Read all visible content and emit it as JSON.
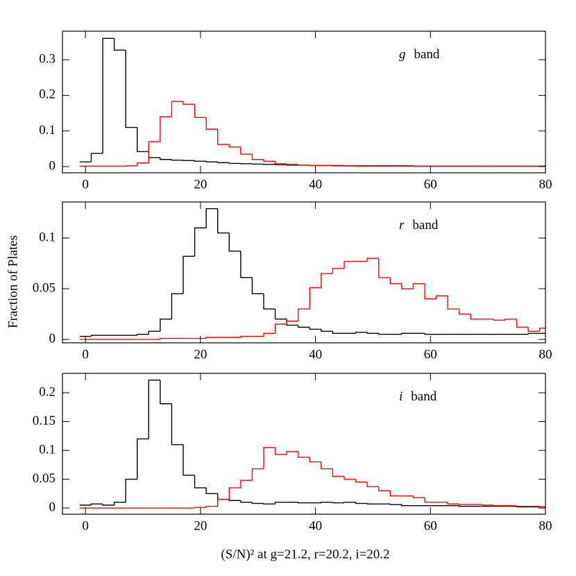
{
  "chart_data": [
    {
      "type": "histogram",
      "annotation": {
        "italic": "g",
        "text": "band"
      },
      "bins": [
        -1,
        1,
        3,
        5,
        7,
        9,
        11,
        13,
        15,
        17,
        19,
        21,
        23,
        25,
        27,
        29,
        31,
        33,
        35,
        37,
        39,
        41,
        43,
        45,
        47,
        49,
        51,
        53,
        55,
        57,
        59,
        61,
        63,
        65,
        67,
        69,
        71,
        73,
        75,
        77,
        79,
        81
      ],
      "series": [
        {
          "color": "#000000",
          "values": [
            0.013,
            0.037,
            0.36,
            0.327,
            0.11,
            0.042,
            0.025,
            0.02,
            0.018,
            0.017,
            0.015,
            0.013,
            0.011,
            0.009,
            0.008,
            0.007,
            0.006,
            0.005,
            0.004,
            0.004,
            0.003,
            0.003,
            0.003,
            0.002,
            0.002,
            0.002,
            0.002,
            0.002,
            0.002,
            0.001,
            0.001,
            0.001,
            0.001,
            0.001,
            0.001,
            0.001,
            0.001,
            0.001,
            0.001,
            0.001,
            0.001
          ]
        },
        {
          "color": "#ff0000",
          "values": [
            0.001,
            0.001,
            0.001,
            0.001,
            0.002,
            0.01,
            0.07,
            0.14,
            0.183,
            0.175,
            0.138,
            0.105,
            0.062,
            0.055,
            0.035,
            0.02,
            0.015,
            0.008,
            0.006,
            0.004,
            0.003,
            0.003,
            0.002,
            0.002,
            0.001,
            0.001,
            0.001,
            0.001,
            0.001,
            0.001,
            0.001,
            0.001,
            0.001,
            0.001,
            0.001,
            0.001,
            0.001,
            0.001,
            0.001,
            0.001,
            0.001
          ]
        }
      ],
      "xlim": [
        -4,
        80
      ],
      "xticks": [
        0,
        20,
        40,
        60,
        80
      ],
      "ylim": [
        -0.0175,
        0.38
      ],
      "yticks": [
        0,
        0.1,
        0.2,
        0.3
      ]
    },
    {
      "type": "histogram",
      "annotation": {
        "italic": "r",
        "text": "band"
      },
      "ylabel": "Fraction of Plates",
      "bins": [
        -1,
        1,
        3,
        5,
        7,
        9,
        11,
        13,
        15,
        17,
        19,
        21,
        23,
        25,
        27,
        29,
        31,
        33,
        35,
        37,
        39,
        41,
        43,
        45,
        47,
        49,
        51,
        53,
        55,
        57,
        59,
        61,
        63,
        65,
        67,
        69,
        71,
        73,
        75,
        77,
        79,
        81
      ],
      "series": [
        {
          "color": "#000000",
          "values": [
            0.003,
            0.004,
            0.004,
            0.004,
            0.004,
            0.005,
            0.008,
            0.02,
            0.045,
            0.082,
            0.11,
            0.129,
            0.105,
            0.087,
            0.061,
            0.045,
            0.03,
            0.02,
            0.014,
            0.012,
            0.01,
            0.008,
            0.006,
            0.006,
            0.007,
            0.006,
            0.005,
            0.005,
            0.006,
            0.006,
            0.005,
            0.005,
            0.005,
            0.005,
            0.005,
            0.005,
            0.005,
            0.005,
            0.005,
            0.006,
            0.006
          ]
        },
        {
          "color": "#ff0000",
          "values": [
            0,
            0,
            0,
            0,
            0,
            0,
            0,
            0.001,
            0.001,
            0.001,
            0.001,
            0.002,
            0.002,
            0.002,
            0.003,
            0.003,
            0.006,
            0.015,
            0.018,
            0.03,
            0.051,
            0.065,
            0.07,
            0.077,
            0.077,
            0.08,
            0.061,
            0.055,
            0.05,
            0.055,
            0.04,
            0.043,
            0.03,
            0.025,
            0.02,
            0.02,
            0.019,
            0.02,
            0.012,
            0.008,
            0.011
          ]
        }
      ],
      "xlim": [
        -4,
        80
      ],
      "xticks": [
        0,
        20,
        40,
        60,
        80
      ],
      "ylim": [
        -0.0034,
        0.1356
      ],
      "yticks": [
        0,
        0.05,
        0.1
      ]
    },
    {
      "type": "histogram",
      "annotation": {
        "italic": "i",
        "text": "band"
      },
      "xlabel": "(S/N)² at g=21.2, r=20.2, i=20.2",
      "bins": [
        -1,
        1,
        3,
        5,
        7,
        9,
        11,
        13,
        15,
        17,
        19,
        21,
        23,
        25,
        27,
        29,
        31,
        33,
        35,
        37,
        39,
        41,
        43,
        45,
        47,
        49,
        51,
        53,
        55,
        57,
        59,
        61,
        63,
        65,
        67,
        69,
        71,
        73,
        75,
        77,
        79,
        81
      ],
      "series": [
        {
          "color": "#000000",
          "values": [
            0.005,
            0.007,
            0.005,
            0.01,
            0.05,
            0.12,
            0.222,
            0.181,
            0.11,
            0.057,
            0.035,
            0.025,
            0.015,
            0.013,
            0.01,
            0.008,
            0.007,
            0.01,
            0.01,
            0.009,
            0.009,
            0.01,
            0.009,
            0.01,
            0.008,
            0.007,
            0.007,
            0.006,
            0.004,
            0.004,
            0.004,
            0.004,
            0.004,
            0.003,
            0.003,
            0.003,
            0.003,
            0.003,
            0.002,
            0.002,
            0.002
          ]
        },
        {
          "color": "#ff0000",
          "values": [
            0,
            0,
            0,
            0,
            0,
            0,
            0,
            0,
            0,
            0,
            0.001,
            0.003,
            0.015,
            0.035,
            0.048,
            0.068,
            0.105,
            0.093,
            0.098,
            0.088,
            0.08,
            0.068,
            0.055,
            0.05,
            0.045,
            0.037,
            0.03,
            0.021,
            0.021,
            0.018,
            0.01,
            0.01,
            0.007,
            0.006,
            0.006,
            0.005,
            0.004,
            0.004,
            0.003,
            0.003,
            0.002
          ]
        }
      ],
      "xlim": [
        -4,
        80
      ],
      "xticks": [
        0,
        20,
        40,
        60,
        80
      ],
      "ylim": [
        -0.0108,
        0.2337
      ],
      "yticks": [
        0,
        0.05,
        0.1,
        0.15,
        0.2
      ]
    }
  ]
}
